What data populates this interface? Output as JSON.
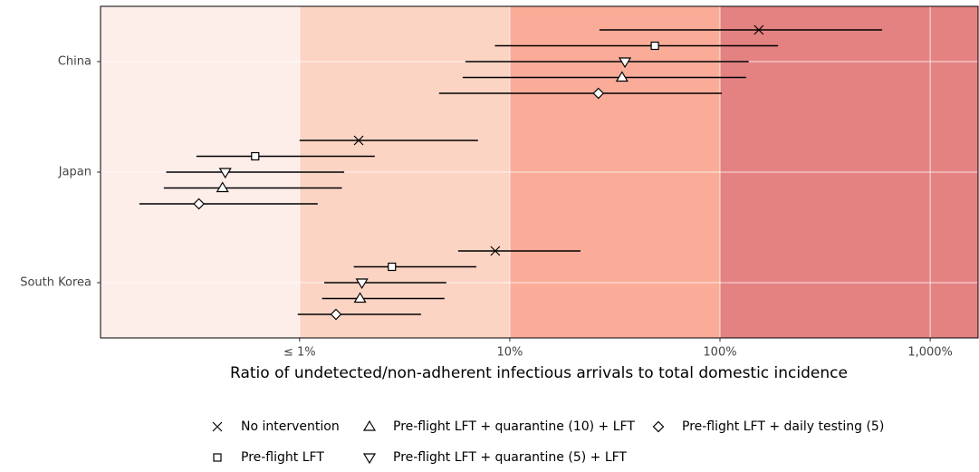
{
  "chart_data": {
    "type": "forest",
    "x_label": "Ratio of undetected/non-adherent infectious arrivals to total domestic incidence",
    "categories": [
      "China",
      "Japan",
      "South Korea"
    ],
    "xscale": "log",
    "xlim": [
      0.113,
      1690
    ],
    "xticks": [
      {
        "value": 1,
        "label": "≤ 1%"
      },
      {
        "value": 10,
        "label": "10%"
      },
      {
        "value": 100,
        "label": "100%"
      },
      {
        "value": 1000,
        "label": "1,000%"
      }
    ],
    "band_colors": [
      "#fdeeea",
      "#fcd4c3",
      "#fbac98",
      "#e48282"
    ],
    "grid": true,
    "legend_position": "bottom",
    "series": [
      {
        "name": "No intervention",
        "marker": "x",
        "values": [
          153,
          1.91,
          8.53
        ],
        "lower": [
          26.7,
          1.0,
          5.68
        ],
        "upper": [
          591,
          7.06,
          21.7
        ]
      },
      {
        "name": "Pre-flight LFT",
        "marker": "square",
        "values": [
          49,
          0.615,
          2.75
        ],
        "lower": [
          8.5,
          0.323,
          1.81
        ],
        "upper": [
          189,
          2.28,
          6.93
        ]
      },
      {
        "name": "Pre-flight LFT + quarantine (5) + LFT",
        "marker": "triangle-down",
        "values": [
          35.3,
          0.443,
          1.98
        ],
        "lower": [
          6.15,
          0.232,
          1.31
        ],
        "upper": [
          137,
          1.63,
          4.99
        ]
      },
      {
        "name": "Pre-flight LFT + quarantine (10) + LFT",
        "marker": "triangle-up",
        "values": [
          34.2,
          0.43,
          1.94
        ],
        "lower": [
          5.97,
          0.226,
          1.28
        ],
        "upper": [
          133,
          1.59,
          4.89
        ]
      },
      {
        "name": "Pre-flight LFT + daily testing (5)",
        "marker": "diamond",
        "values": [
          26.4,
          0.332,
          1.49
        ],
        "lower": [
          4.61,
          0.173,
          0.98
        ],
        "upper": [
          102,
          1.22,
          3.78
        ]
      }
    ]
  }
}
